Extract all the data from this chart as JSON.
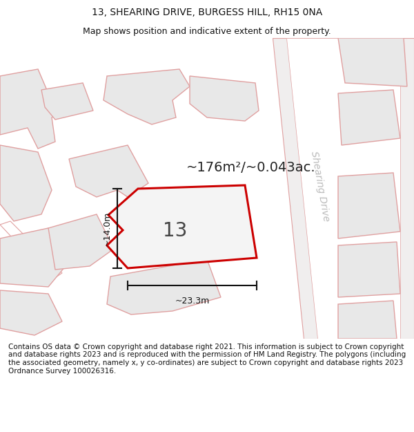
{
  "title": "13, SHEARING DRIVE, BURGESS HILL, RH15 0NA",
  "subtitle": "Map shows position and indicative extent of the property.",
  "footer": "Contains OS data © Crown copyright and database right 2021. This information is subject to Crown copyright and database rights 2023 and is reproduced with the permission of HM Land Registry. The polygons (including the associated geometry, namely x, y co-ordinates) are subject to Crown copyright and database rights 2023 Ordnance Survey 100026316.",
  "area_label": "~176m²/~0.043ac.",
  "plot_number": "13",
  "dim_width": "~23.3m",
  "dim_height": "~14.0m",
  "road_label": "Shearing Drive",
  "bg_color": "#ffffff",
  "bldg_fill": "#e8e8e8",
  "bldg_edge": "#e0a0a0",
  "plot_fill": "#f4f4f4",
  "plot_edge": "#cc0000",
  "road_fill": "#f8f4f4",
  "road_edge": "#e0a0a0",
  "dim_color": "#111111",
  "text_dark": "#222222",
  "road_label_color": "#bbbbbb",
  "title_size": 10,
  "subtitle_size": 9,
  "footer_size": 7.5,
  "area_size": 14,
  "plot_num_size": 20,
  "dim_size": 9
}
